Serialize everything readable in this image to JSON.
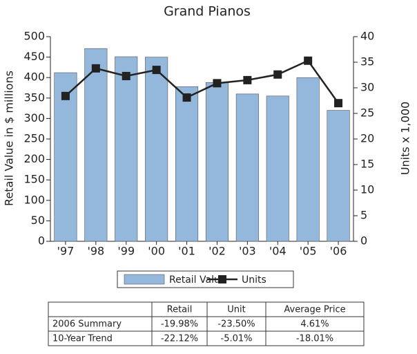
{
  "chart_data": {
    "type": "bar_line",
    "title": "Grand Pianos",
    "y_label": "Retail Value in $ millions",
    "y2_label": "Units x 1,000",
    "categories": [
      "'97",
      "'98",
      "'99",
      "'00",
      "'01",
      "'02",
      "'03",
      "'04",
      "'05",
      "'06"
    ],
    "series": [
      {
        "name": "Retail Value",
        "type": "bar",
        "color": "#93b8dc",
        "values": [
          412,
          471,
          451,
          450,
          378,
          388,
          360,
          355,
          400,
          320
        ]
      },
      {
        "name": "Units",
        "type": "line",
        "axis": "y2",
        "color": "#222222",
        "values": [
          28.4,
          33.8,
          32.3,
          33.5,
          28.1,
          30.9,
          31.5,
          32.6,
          35.3,
          27.0
        ]
      }
    ],
    "ylim": [
      0,
      500
    ],
    "yticks": [
      0,
      50,
      100,
      150,
      200,
      250,
      300,
      350,
      400,
      450,
      500
    ],
    "y2lim": [
      0,
      40
    ],
    "y2ticks": [
      0,
      5,
      10,
      15,
      20,
      25,
      30,
      35,
      40
    ]
  },
  "table": {
    "columns": [
      "Retail",
      "Unit",
      "Average Price"
    ],
    "rows": [
      {
        "label": "2006 Summary",
        "cells": [
          "-19.98%",
          "-23.50%",
          "4.61%"
        ]
      },
      {
        "label": "10-Year Trend",
        "cells": [
          "-22.12%",
          "-5.01%",
          "-18.01%"
        ]
      }
    ]
  }
}
